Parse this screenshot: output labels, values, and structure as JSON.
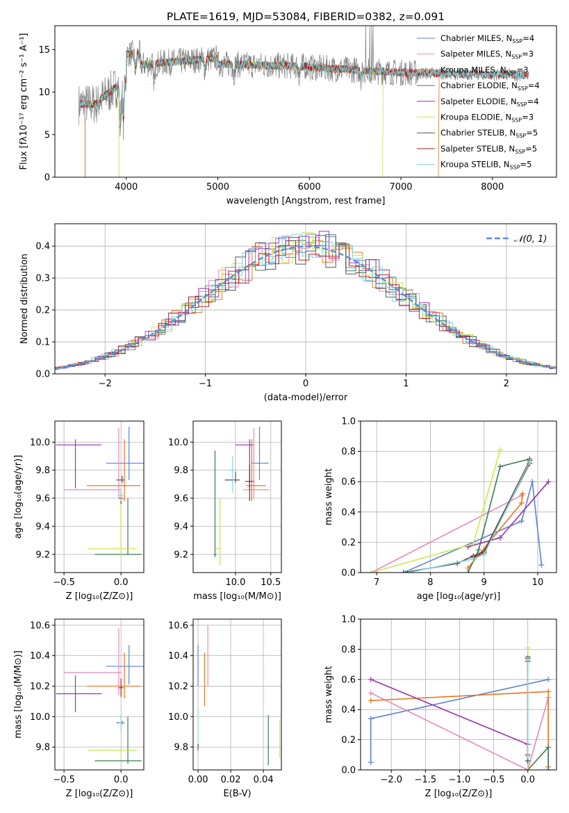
{
  "chart_data": [
    {
      "id": "spectrum",
      "type": "line",
      "title": "PLATE=1619, MJD=53084, FIBERID=0382, z=0.091",
      "xlabel": "wavelength [Angstrom, rest frame]",
      "ylabel": "Flux [fλ10⁻¹⁷ erg cm⁻² s⁻¹ A⁻¹]",
      "xlim": [
        3220,
        8700
      ],
      "ylim": [
        0,
        17.8
      ],
      "xticks": [
        4000,
        5000,
        6000,
        7000,
        8000
      ],
      "yticks": [
        0,
        5,
        10,
        15
      ],
      "grid": false,
      "legend_placement": "top-right",
      "data_color": "#808080",
      "series": [
        {
          "name": "Chabrier MILES, N",
          "sub": "SSP",
          "suffix": "=4",
          "color": "#5b7fdb"
        },
        {
          "name": "Salpeter MILES, N",
          "sub": "SSP",
          "suffix": "=3",
          "color": "#e58ac0"
        },
        {
          "name": "Kroupa MILES, N",
          "sub": "SSP",
          "suffix": "=3",
          "color": "#e8741c"
        },
        {
          "name": "Chabrier ELODIE, N",
          "sub": "SSP",
          "suffix": "=4",
          "color": "#3b7a52"
        },
        {
          "name": "Salpeter ELODIE, N",
          "sub": "SSP",
          "suffix": "=4",
          "color": "#9b2fb4"
        },
        {
          "name": "Kroupa ELODIE, N",
          "sub": "SSP",
          "suffix": "=3",
          "color": "#c9e84a"
        },
        {
          "name": "Chabrier STELIB, N",
          "sub": "SSP",
          "suffix": "=5",
          "color": "#505050"
        },
        {
          "name": "Salpeter STELIB, N",
          "sub": "SSP",
          "suffix": "=5",
          "color": "#b21e1e"
        },
        {
          "name": "Kroupa STELIB, N",
          "sub": "SSP",
          "suffix": "=5",
          "color": "#7fd6dc"
        }
      ]
    },
    {
      "id": "residuals",
      "type": "line",
      "xlabel": "(data-model)/error",
      "ylabel": "Normed distribution",
      "xlim": [
        -2.5,
        2.5
      ],
      "ylim": [
        0,
        0.47
      ],
      "xticks": [
        -2,
        -1,
        0,
        1,
        2
      ],
      "yticks": [
        0.0,
        0.1,
        0.2,
        0.3,
        0.4
      ],
      "grid": true,
      "legend_placement": "top-right",
      "gauss_label": "𝒩(0, 1)",
      "gauss_color": "#5b8dd9"
    },
    {
      "id": "z-age",
      "type": "scatter",
      "xlabel": "Z [log₁₀(Z/Z⊙)]",
      "ylabel": "age  [log₁₀(age/yr)]",
      "xlim": [
        -0.58,
        0.2
      ],
      "ylim": [
        9.07,
        10.15
      ],
      "xticks": [
        -0.5,
        0.0
      ],
      "yticks": [
        9.2,
        9.4,
        9.6,
        9.8,
        10.0
      ],
      "grid": true,
      "points": [
        {
          "color": "#5b7fdb",
          "x": 0.07,
          "y": 9.85,
          "xerr": [
            0.2,
            0.2
          ],
          "yerr": [
            0.12,
            0.26
          ]
        },
        {
          "color": "#e58ac0",
          "x": -0.02,
          "y": 9.66,
          "xerr": [
            0.48,
            0.02
          ],
          "yerr": [
            0.06,
            0.44
          ]
        },
        {
          "color": "#e8741c",
          "x": 0.03,
          "y": 9.69,
          "xerr": [
            0.33,
            0.14
          ],
          "yerr": [
            0.11,
            0.33
          ]
        },
        {
          "color": "#3b7a52",
          "x": 0.06,
          "y": 9.2,
          "xerr": [
            0.29,
            0.12
          ],
          "yerr": [
            0.0,
            0.4
          ]
        },
        {
          "color": "#9b2fb4",
          "x": -0.4,
          "y": 9.98,
          "xerr": [
            0.17,
            0.23
          ],
          "yerr": [
            0.31,
            0.04
          ]
        },
        {
          "color": "#c9e84a",
          "x": 0.0,
          "y": 9.24,
          "xerr": [
            0.29,
            0.14
          ],
          "yerr": [
            0.06,
            0.4
          ]
        },
        {
          "color": "#505050",
          "x": 0.01,
          "y": 9.73,
          "xerr": [
            0.05,
            0.02
          ],
          "yerr": [
            0.02,
            0.03
          ]
        },
        {
          "color": "#b21e1e",
          "x": 0.0,
          "y": 9.6,
          "xerr": [
            0.02,
            0.02
          ],
          "yerr": [
            0.04,
            0.04
          ]
        },
        {
          "color": "#7fd6dc",
          "x": 0.0,
          "y": 9.62,
          "xerr": [
            0.02,
            0.02
          ],
          "yerr": [
            0.04,
            0.04
          ]
        }
      ]
    },
    {
      "id": "mass-age",
      "type": "scatter",
      "xlabel": "mass [log₁₀(M/M⊙)]",
      "ylabel": "",
      "xlim": [
        9.4,
        10.65
      ],
      "ylim": [
        9.07,
        10.15
      ],
      "xticks": [
        10.0,
        10.5
      ],
      "yticks": [
        9.2,
        9.4,
        9.6,
        9.8,
        10.0
      ],
      "grid": true,
      "points": [
        {
          "color": "#5b7fdb",
          "x": 10.34,
          "y": 9.85,
          "xerr": [
            0.12,
            0.13
          ],
          "yerr": [
            0.12,
            0.26
          ]
        },
        {
          "color": "#e58ac0",
          "x": 10.26,
          "y": 9.66,
          "xerr": [
            0.15,
            0.22
          ],
          "yerr": [
            0.06,
            0.44
          ]
        },
        {
          "color": "#e8741c",
          "x": 10.23,
          "y": 9.69,
          "xerr": [
            0.08,
            0.2
          ],
          "yerr": [
            0.11,
            0.33
          ]
        },
        {
          "color": "#3b7a52",
          "x": 9.71,
          "y": 9.2,
          "xerr": [
            0.02,
            0.02
          ],
          "yerr": [
            0.02,
            0.74
          ]
        },
        {
          "color": "#9b2fb4",
          "x": 10.2,
          "y": 9.98,
          "xerr": [
            0.2,
            0.05
          ],
          "yerr": [
            0.31,
            0.04
          ]
        },
        {
          "color": "#c9e84a",
          "x": 9.78,
          "y": 9.24,
          "xerr": [
            0.06,
            0.0
          ],
          "yerr": [
            0.12,
            0.36
          ]
        },
        {
          "color": "#505050",
          "x": 10.0,
          "y": 9.73,
          "xerr": [
            0.15,
            0.06
          ],
          "yerr": [
            0.02,
            0.06
          ]
        },
        {
          "color": "#b21e1e",
          "x": 10.2,
          "y": 9.72,
          "xerr": [
            0.06,
            0.06
          ],
          "yerr": [
            0.14,
            0.12
          ]
        },
        {
          "color": "#7fd6dc",
          "x": 9.96,
          "y": 9.8,
          "xerr": [
            0.04,
            0.02
          ],
          "yerr": [
            0.16,
            0.1
          ]
        }
      ]
    },
    {
      "id": "age-massweight",
      "type": "line",
      "xlabel": "age  [log₁₀(age/yr)]",
      "ylabel": "mass weight",
      "xlim": [
        6.7,
        10.35
      ],
      "ylim": [
        0,
        1.0
      ],
      "xticks": [
        7,
        8,
        9,
        10
      ],
      "yticks": [
        0.0,
        0.2,
        0.4,
        0.6,
        0.8,
        1.0
      ],
      "grid": true,
      "series": [
        {
          "color": "#5b7fdb",
          "x": [
            7.5,
            9.7,
            9.9,
            10.07
          ],
          "y": [
            0.0,
            0.34,
            0.6,
            0.05
          ]
        },
        {
          "color": "#e58ac0",
          "x": [
            6.9,
            9.7
          ],
          "y": [
            0.0,
            0.51
          ]
        },
        {
          "color": "#e8741c",
          "x": [
            8.7,
            9.7,
            9.72
          ],
          "y": [
            0.03,
            0.46,
            0.52
          ]
        },
        {
          "color": "#3b7a52",
          "x": [
            8.7,
            8.9,
            9.3,
            9.85
          ],
          "y": [
            0.0,
            0.15,
            0.7,
            0.75
          ]
        },
        {
          "color": "#9b2fb4",
          "x": [
            8.7,
            9.3,
            10.2
          ],
          "y": [
            0.17,
            0.23,
            0.6
          ]
        },
        {
          "color": "#c9e84a",
          "x": [
            6.9,
            8.8,
            9.3
          ],
          "y": [
            0.0,
            0.19,
            0.81
          ]
        },
        {
          "color": "#505050",
          "x": [
            7.5,
            8.5,
            8.8,
            9.0,
            9.85
          ],
          "y": [
            0.0,
            0.06,
            0.11,
            0.14,
            0.74
          ]
        },
        {
          "color": "#b21e1e",
          "x": [
            8.8,
            9.0,
            9.85
          ],
          "y": [
            0.1,
            0.13,
            0.72
          ]
        },
        {
          "color": "#7fd6dc",
          "x": [
            7.6,
            8.8,
            9.0,
            9.85
          ],
          "y": [
            0.0,
            0.09,
            0.12,
            0.73
          ]
        }
      ]
    },
    {
      "id": "z-mass",
      "type": "scatter",
      "xlabel": "Z [log₁₀(Z/Z⊙)]",
      "ylabel": "mass [log₁₀(M/M⊙)]",
      "xlim": [
        -0.58,
        0.2
      ],
      "ylim": [
        9.65,
        10.64
      ],
      "xticks": [
        -0.5,
        0.0
      ],
      "yticks": [
        9.8,
        10.0,
        10.2,
        10.4,
        10.6
      ],
      "grid": true,
      "points": [
        {
          "color": "#5b7fdb",
          "x": 0.07,
          "y": 10.33,
          "xerr": [
            0.2,
            0.2
          ],
          "yerr": [
            0.12,
            0.14
          ]
        },
        {
          "color": "#e58ac0",
          "x": -0.02,
          "y": 10.29,
          "xerr": [
            0.48,
            0.02
          ],
          "yerr": [
            0.15,
            0.29
          ]
        },
        {
          "color": "#e8741c",
          "x": 0.03,
          "y": 10.2,
          "xerr": [
            0.33,
            0.14
          ],
          "yerr": [
            0.08,
            0.22
          ]
        },
        {
          "color": "#3b7a52",
          "x": 0.06,
          "y": 9.71,
          "xerr": [
            0.29,
            0.12
          ],
          "yerr": [
            0.02,
            0.29
          ]
        },
        {
          "color": "#9b2fb4",
          "x": -0.4,
          "y": 10.15,
          "xerr": [
            0.17,
            0.23
          ],
          "yerr": [
            0.12,
            0.12
          ]
        },
        {
          "color": "#c9e84a",
          "x": 0.0,
          "y": 9.78,
          "xerr": [
            0.29,
            0.14
          ],
          "yerr": [
            0.04,
            0.0
          ]
        },
        {
          "color": "#505050",
          "x": 0.01,
          "y": 9.96,
          "xerr": [
            0.05,
            0.02
          ],
          "yerr": [
            0.01,
            0.01
          ]
        },
        {
          "color": "#b21e1e",
          "x": 0.0,
          "y": 10.19,
          "xerr": [
            0.02,
            0.02
          ],
          "yerr": [
            0.06,
            0.06
          ]
        },
        {
          "color": "#7fd6dc",
          "x": 0.0,
          "y": 9.96,
          "xerr": [
            0.02,
            0.02
          ],
          "yerr": [
            0.06,
            0.06
          ]
        }
      ]
    },
    {
      "id": "ebv-mass",
      "type": "scatter",
      "xlabel": "E(B-V)",
      "ylabel": "",
      "xlim": [
        -0.003,
        0.051
      ],
      "ylim": [
        9.65,
        10.64
      ],
      "xticks": [
        0.0,
        0.02,
        0.04
      ],
      "yticks": [
        9.8,
        10.0,
        10.2,
        10.4,
        10.6
      ],
      "grid": true,
      "points": [
        {
          "color": "#5b7fdb",
          "x": 0.0,
          "y": 10.3,
          "xerr": [
            0,
            0
          ],
          "yerr": [
            0.1,
            0.17
          ]
        },
        {
          "color": "#e58ac0",
          "x": 0.006,
          "y": 10.3,
          "xerr": [
            0,
            0
          ],
          "yerr": [
            0.1,
            0.3
          ]
        },
        {
          "color": "#e8741c",
          "x": 0.004,
          "y": 10.2,
          "xerr": [
            0,
            0
          ],
          "yerr": [
            0.13,
            0.22
          ]
        },
        {
          "color": "#3b7a52",
          "x": 0.043,
          "y": 9.8,
          "xerr": [
            0,
            0
          ],
          "yerr": [
            0.12,
            0.21
          ]
        },
        {
          "color": "#c9e84a",
          "x": 0.05,
          "y": 9.85,
          "xerr": [
            0,
            0
          ],
          "yerr": [
            0.12,
            0.13
          ]
        },
        {
          "color": "#7fd6dc",
          "x": 0.0,
          "y": 9.95,
          "xerr": [
            0,
            0
          ],
          "yerr": [
            0.15,
            0.1
          ]
        },
        {
          "color": "#505050",
          "x": 0.0,
          "y": 9.8,
          "xerr": [
            0,
            0
          ],
          "yerr": [
            0.02,
            0.02
          ]
        }
      ]
    },
    {
      "id": "z-massweight",
      "type": "line",
      "xlabel": "Z [log₁₀(Z/Z⊙)]",
      "ylabel": "mass weight",
      "xlim": [
        -2.45,
        0.42
      ],
      "ylim": [
        0,
        1.0
      ],
      "xticks": [
        -2.0,
        -1.5,
        -1.0,
        -0.5,
        0.0
      ],
      "yticks": [
        0.0,
        0.2,
        0.4,
        0.6,
        0.8,
        1.0
      ],
      "grid": true,
      "series": [
        {
          "color": "#5b7fdb",
          "x": [
            -2.3,
            -2.3,
            0.3
          ],
          "y": [
            0.05,
            0.34,
            0.6
          ]
        },
        {
          "color": "#e58ac0",
          "x": [
            -2.3,
            0.0,
            0.3,
            0.3
          ],
          "y": [
            0.51,
            0.0,
            0.48,
            0.0
          ]
        },
        {
          "color": "#e8741c",
          "x": [
            -2.3,
            0.3,
            0.3
          ],
          "y": [
            0.46,
            0.52,
            0.02
          ]
        },
        {
          "color": "#3b7a52",
          "x": [
            0.0,
            0.0,
            0.3,
            0.3
          ],
          "y": [
            0.75,
            0.0,
            0.15,
            0.0
          ]
        },
        {
          "color": "#9b2fb4",
          "x": [
            -2.3,
            0.0,
            0.0
          ],
          "y": [
            0.6,
            0.17,
            0.0
          ]
        },
        {
          "color": "#c9e84a",
          "x": [
            0.0,
            0.0
          ],
          "y": [
            0.81,
            0.0
          ]
        },
        {
          "color": "#505050",
          "x": [
            0.0,
            0.0
          ],
          "y": [
            0.74,
            0.06
          ]
        },
        {
          "color": "#b21e1e",
          "x": [
            0.0,
            0.0
          ],
          "y": [
            0.72,
            0.1
          ]
        },
        {
          "color": "#7fd6dc",
          "x": [
            0.0,
            0.0
          ],
          "y": [
            0.73,
            0.09
          ]
        }
      ]
    }
  ]
}
